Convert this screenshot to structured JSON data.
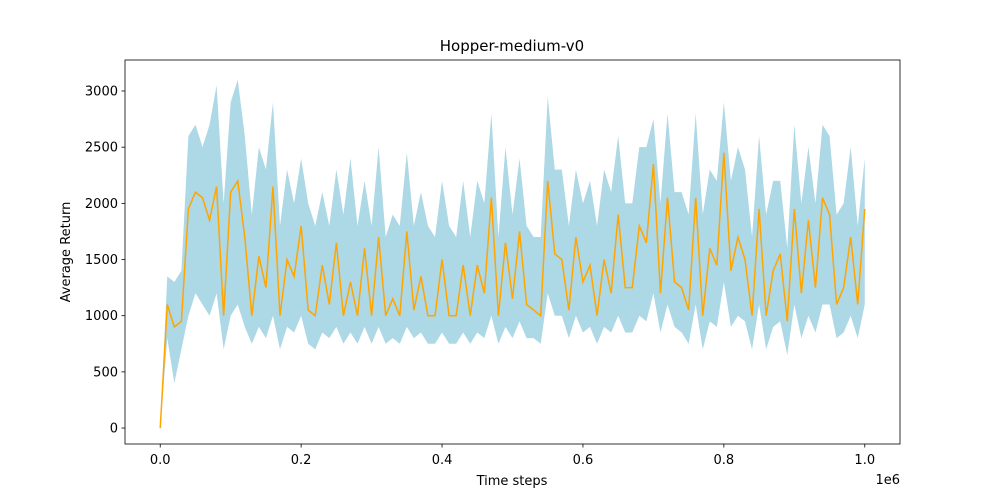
{
  "chart_data": {
    "type": "line",
    "title": "Hopper-medium-v0",
    "x_label": "Time steps",
    "y_label": "Average Return",
    "x_offset_label": "1e6",
    "x": [
      0,
      0.01,
      0.02,
      0.03,
      0.04,
      0.05,
      0.06,
      0.07,
      0.08,
      0.09,
      0.1,
      0.11,
      0.12,
      0.13,
      0.14,
      0.15,
      0.16,
      0.17,
      0.18,
      0.19,
      0.2,
      0.21,
      0.22,
      0.23,
      0.24,
      0.25,
      0.26,
      0.27,
      0.28,
      0.29,
      0.3,
      0.31,
      0.32,
      0.33,
      0.34,
      0.35,
      0.36,
      0.37,
      0.38,
      0.39,
      0.4,
      0.41,
      0.42,
      0.43,
      0.44,
      0.45,
      0.46,
      0.47,
      0.48,
      0.49,
      0.5,
      0.51,
      0.52,
      0.53,
      0.54,
      0.55,
      0.56,
      0.57,
      0.58,
      0.59,
      0.6,
      0.61,
      0.62,
      0.63,
      0.64,
      0.65,
      0.66,
      0.67,
      0.68,
      0.69,
      0.7,
      0.71,
      0.72,
      0.73,
      0.74,
      0.75,
      0.76,
      0.77,
      0.78,
      0.79,
      0.8,
      0.81,
      0.82,
      0.83,
      0.84,
      0.85,
      0.86,
      0.87,
      0.88,
      0.89,
      0.9,
      0.91,
      0.92,
      0.93,
      0.94,
      0.95,
      0.96,
      0.97,
      0.98,
      0.99,
      1.0
    ],
    "series": [
      {
        "color": "#ffa500",
        "values": [
          0,
          1100,
          900,
          950,
          1950,
          2100,
          2050,
          1850,
          2150,
          1000,
          2100,
          2200,
          1700,
          1000,
          1530,
          1250,
          2150,
          1000,
          1500,
          1350,
          1800,
          1050,
          1000,
          1450,
          1100,
          1650,
          1000,
          1300,
          1000,
          1600,
          1000,
          1700,
          1000,
          1150,
          1000,
          1750,
          1050,
          1350,
          1000,
          1000,
          1500,
          1000,
          1000,
          1450,
          1000,
          1450,
          1200,
          2050,
          1000,
          1650,
          1150,
          1750,
          1100,
          1050,
          1000,
          2200,
          1550,
          1500,
          1050,
          1700,
          1300,
          1450,
          1000,
          1500,
          1200,
          1900,
          1250,
          1250,
          1800,
          1650,
          2350,
          1200,
          2050,
          1300,
          1250,
          1050,
          2050,
          1000,
          1600,
          1450,
          2450,
          1400,
          1700,
          1500,
          1000,
          1950,
          1000,
          1400,
          1550,
          950,
          1950,
          1200,
          1850,
          1250,
          2050,
          1900,
          1100,
          1250,
          1700,
          1100,
          1950
        ]
      }
    ],
    "band": {
      "color": "#add8e6",
      "upper": [
        0,
        1350,
        1300,
        1400,
        2600,
        2700,
        2500,
        2700,
        3050,
        2000,
        2900,
        3100,
        2600,
        1900,
        2500,
        2300,
        2900,
        1800,
        2300,
        2000,
        2400,
        2000,
        1800,
        2100,
        1800,
        2300,
        1900,
        2400,
        1800,
        2200,
        1800,
        2500,
        1700,
        1900,
        1800,
        2450,
        1800,
        2100,
        1800,
        1700,
        2200,
        1800,
        1700,
        2200,
        1700,
        2200,
        2000,
        2800,
        1700,
        2500,
        1900,
        2400,
        1800,
        1700,
        1700,
        2950,
        2300,
        2300,
        1800,
        2300,
        2000,
        2200,
        1800,
        2300,
        2100,
        2600,
        2000,
        2000,
        2500,
        2500,
        2750,
        2000,
        2800,
        2100,
        2100,
        1900,
        2800,
        1900,
        2300,
        2200,
        2900,
        2200,
        2500,
        2300,
        1700,
        2600,
        1900,
        2200,
        2200,
        1600,
        2700,
        2000,
        2500,
        2000,
        2700,
        2600,
        1900,
        2000,
        2500,
        1800,
        2400
      ],
      "lower": [
        0,
        800,
        400,
        700,
        1000,
        1200,
        1100,
        1000,
        1200,
        700,
        1000,
        1100,
        900,
        750,
        900,
        800,
        1000,
        700,
        900,
        850,
        1000,
        750,
        700,
        850,
        800,
        900,
        750,
        850,
        750,
        900,
        750,
        900,
        750,
        800,
        750,
        900,
        800,
        850,
        750,
        750,
        850,
        750,
        750,
        850,
        750,
        850,
        800,
        1000,
        750,
        900,
        800,
        950,
        800,
        800,
        750,
        1200,
        1000,
        1000,
        800,
        1000,
        850,
        900,
        750,
        900,
        850,
        1000,
        850,
        850,
        1000,
        950,
        1200,
        850,
        1100,
        900,
        850,
        750,
        1100,
        700,
        950,
        900,
        1300,
        900,
        1000,
        950,
        700,
        1100,
        700,
        900,
        950,
        650,
        1100,
        800,
        1000,
        850,
        1100,
        1100,
        800,
        850,
        1000,
        800,
        1100
      ]
    },
    "xlim": [
      -0.05,
      1.05
    ],
    "ylim": [
      -142,
      3276
    ],
    "xticks": [
      {
        "value": 0,
        "label": "0.0"
      },
      {
        "value": 0.2,
        "label": "0.2"
      },
      {
        "value": 0.4,
        "label": "0.4"
      },
      {
        "value": 0.6,
        "label": "0.6"
      },
      {
        "value": 0.8,
        "label": "0.8"
      },
      {
        "value": 1.0,
        "label": "1.0"
      }
    ],
    "yticks": [
      0,
      500,
      1000,
      1500,
      2000,
      2500,
      3000
    ]
  }
}
